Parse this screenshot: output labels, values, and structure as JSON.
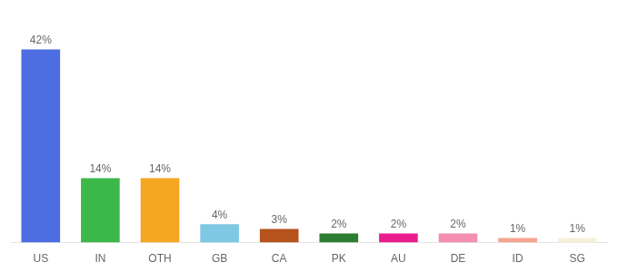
{
  "chart_data": {
    "type": "bar",
    "categories": [
      "US",
      "IN",
      "OTH",
      "GB",
      "CA",
      "PK",
      "AU",
      "DE",
      "ID",
      "SG"
    ],
    "values": [
      42,
      14,
      14,
      4,
      3,
      2,
      2,
      2,
      1,
      1
    ],
    "value_labels": [
      "42%",
      "14%",
      "14%",
      "4%",
      "3%",
      "2%",
      "2%",
      "2%",
      "1%",
      "1%"
    ],
    "data_labels": true,
    "colors": [
      "#4d6ee3",
      "#3cb84a",
      "#f5a623",
      "#7ec8e3",
      "#b5541c",
      "#2e7d32",
      "#e91e8c",
      "#f48fb1",
      "#f4a490",
      "#f5f0d8"
    ],
    "ylim": [
      0,
      48
    ],
    "tick_labels": "x",
    "grid": false
  }
}
